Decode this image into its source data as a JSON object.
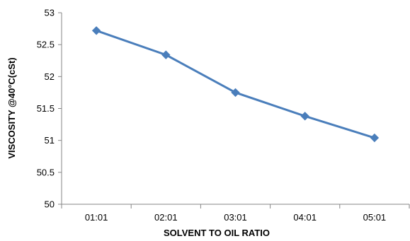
{
  "chart_data": {
    "type": "line",
    "title": "",
    "xlabel": "SOLVENT TO OIL RATIO",
    "ylabel": "VISCOSITY @40°C(cSt)",
    "categories": [
      "01:01",
      "02:01",
      "03:01",
      "04:01",
      "05:01"
    ],
    "series": [
      {
        "values": [
          52.72,
          52.34,
          51.75,
          51.38,
          51.04
        ],
        "color": "#4a7ebb",
        "marker": "diamond"
      }
    ],
    "ylim": [
      50,
      53
    ],
    "yticks": [
      50,
      50.5,
      51,
      51.5,
      52,
      52.5,
      53
    ],
    "ytick_labels": [
      "50",
      "50.5",
      "51",
      "51.5",
      "52",
      "52.5",
      "53"
    ],
    "grid": false,
    "legend": "none"
  }
}
